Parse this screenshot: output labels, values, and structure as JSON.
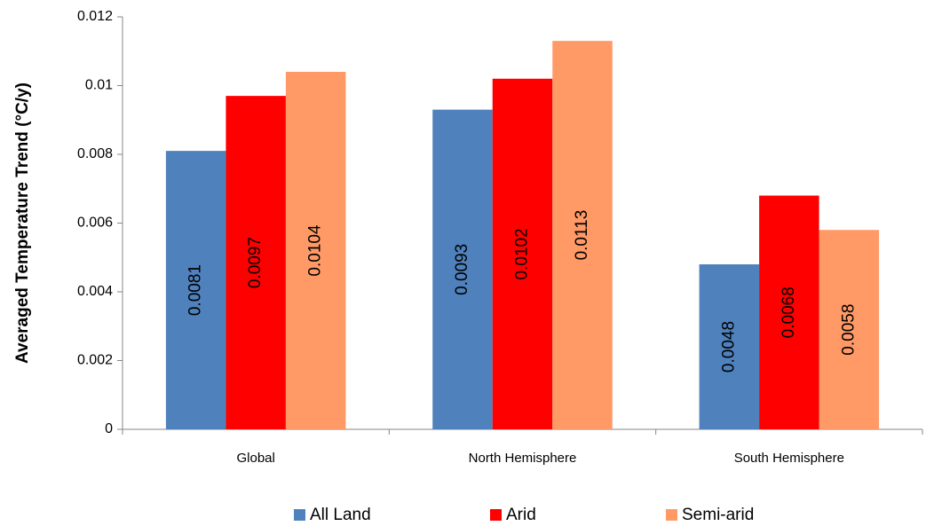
{
  "chart_data": {
    "type": "bar",
    "categories": [
      "Global",
      "North Hemisphere",
      "South Hemisphere"
    ],
    "series": [
      {
        "name": "All Land",
        "values": [
          0.0081,
          0.0093,
          0.0048
        ],
        "labels": [
          "0.0081",
          "0.0093",
          "0.0048"
        ],
        "color": "#4F81BD"
      },
      {
        "name": "Arid",
        "values": [
          0.0097,
          0.0102,
          0.0068
        ],
        "labels": [
          "0.0097",
          "0.0102",
          "0.0068"
        ],
        "color": "#FF0000"
      },
      {
        "name": "Semi-arid",
        "values": [
          0.0104,
          0.0113,
          0.0058
        ],
        "labels": [
          "0.0104",
          "0.0113",
          "0.0058"
        ],
        "color": "#FF9966"
      }
    ],
    "ylabel": "Averaged Temperature Trend (°C/y)",
    "ylim": [
      0,
      0.012
    ],
    "yticks": [
      0,
      0.002,
      0.004,
      0.006,
      0.008,
      0.01,
      0.012
    ],
    "ytick_labels": [
      "0",
      "0.002",
      "0.004",
      "0.006",
      "0.008",
      "0.01",
      "0.012"
    ],
    "grid": false,
    "legend_position": "bottom"
  }
}
